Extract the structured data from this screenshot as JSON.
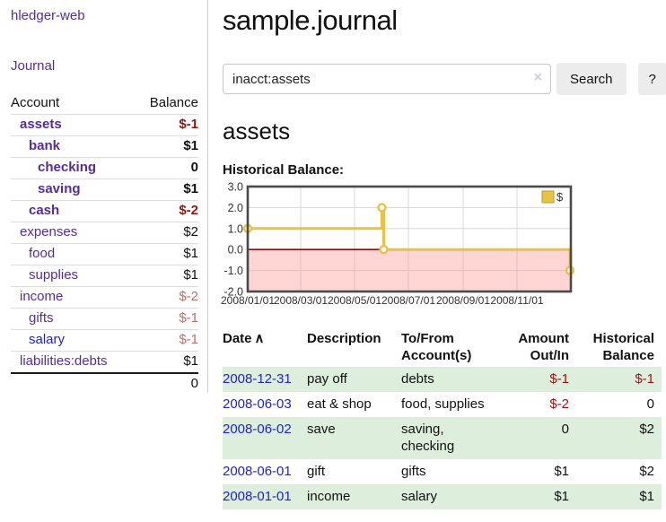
{
  "app": {
    "brand": "hledger-web"
  },
  "sidebar": {
    "journal_link": "Journal",
    "table": {
      "account_header": "Account",
      "balance_header": "Balance",
      "rows": [
        {
          "name": "assets",
          "balance": "$-1",
          "depth": 1,
          "bold": true,
          "link_color": "purple"
        },
        {
          "name": "bank",
          "balance": "$1",
          "depth": 2,
          "bold": true,
          "link_color": "purple"
        },
        {
          "name": "checking",
          "balance": "0",
          "depth": 3,
          "bold": true,
          "link_color": "purple"
        },
        {
          "name": "saving",
          "balance": "$1",
          "depth": 3,
          "bold": true,
          "link_color": "purple"
        },
        {
          "name": "cash",
          "balance": "$-2",
          "depth": 2,
          "bold": true,
          "link_color": "purple"
        },
        {
          "name": "expenses",
          "balance": "$2",
          "depth": 1,
          "bold": false,
          "link_color": "purple"
        },
        {
          "name": "food",
          "balance": "$1",
          "depth": 2,
          "bold": false,
          "link_color": "purple"
        },
        {
          "name": "supplies",
          "balance": "$1",
          "depth": 2,
          "bold": false,
          "link_color": "purple"
        },
        {
          "name": "income",
          "balance": "$-2",
          "depth": 1,
          "bold": false,
          "link_color": "purple"
        },
        {
          "name": "gifts",
          "balance": "$-1",
          "depth": 2,
          "bold": false,
          "link_color": "purple"
        },
        {
          "name": "salary",
          "balance": "$-1",
          "depth": 2,
          "bold": false,
          "link_color": "blue"
        },
        {
          "name": "liabilities:debts",
          "balance": "$1",
          "depth": 1,
          "bold": false,
          "link_color": "purple"
        }
      ],
      "total": "0"
    }
  },
  "main": {
    "title": "sample.journal",
    "search": {
      "value": "inacct:assets",
      "clear_icon": "×",
      "button_label": "Search",
      "help_label": "?"
    },
    "account_heading": "assets",
    "chart_label": "Historical Balance:"
  },
  "chart_data": {
    "type": "line",
    "title": "Historical Balance:",
    "steps": true,
    "markers": true,
    "series": [
      {
        "name": "$",
        "points": [
          [
            "2008-01-01",
            1
          ],
          [
            "2008-06-01",
            2
          ],
          [
            "2008-06-02",
            2
          ],
          [
            "2008-06-03",
            0
          ],
          [
            "2008-12-31",
            -1
          ]
        ]
      }
    ],
    "x_ticks": [
      "2008/01/01",
      "2008/03/01",
      "2008/05/01",
      "2008/07/01",
      "2008/09/01",
      "2008/11/01"
    ],
    "y_ticks": [
      "3.0",
      "2.0",
      "1.0",
      "0.0",
      "-1.0",
      "-2.0"
    ],
    "xlim": [
      "2008-01-01",
      "2009-01-01"
    ],
    "ylim": [
      -2,
      3
    ],
    "grid": true,
    "legend_position": "top-right",
    "legend_label": "$",
    "line_color": "#e7c243",
    "marker_fill": "#ffffff",
    "zero_line_color": "#8b0b0b",
    "negative_region_fill": "rgba(255,148,142,0.38)",
    "grid_color": "#d8d8d8",
    "border_color": "#4a4a4a"
  },
  "table": {
    "headers": {
      "date": "Date",
      "sort_icon": "∧",
      "description": "Description",
      "accounts": "To/From Account(s)",
      "amount": "Amount Out/In",
      "balance": "Historical Balance"
    },
    "rows": [
      {
        "date": "2008-12-31",
        "description": "pay off",
        "accounts": "debts",
        "amount": "$-1",
        "balance": "$-1"
      },
      {
        "date": "2008-06-03",
        "description": "eat & shop",
        "accounts": "food, supplies",
        "amount": "$-2",
        "balance": "0"
      },
      {
        "date": "2008-06-02",
        "description": "save",
        "accounts": "saving, checking",
        "amount": "0",
        "balance": "$2"
      },
      {
        "date": "2008-06-01",
        "description": "gift",
        "accounts": "gifts",
        "amount": "$1",
        "balance": "$2"
      },
      {
        "date": "2008-01-01",
        "description": "income",
        "accounts": "salary",
        "amount": "$1",
        "balance": "$1"
      }
    ]
  }
}
